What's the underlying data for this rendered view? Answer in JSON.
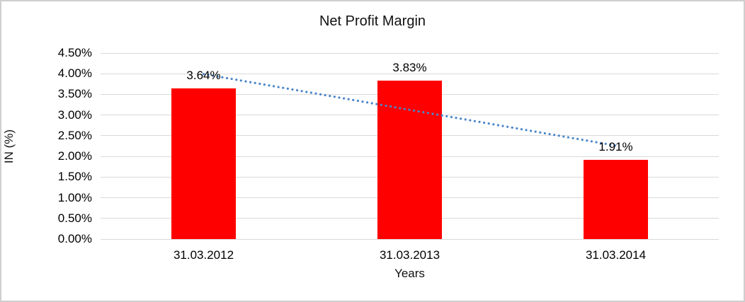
{
  "chart_data": {
    "type": "bar",
    "title": "Net Profit Margin",
    "xlabel": "Years",
    "ylabel": "IN (%)",
    "categories": [
      "31.03.2012",
      "31.03.2013",
      "31.03.2014"
    ],
    "values": [
      3.64,
      3.83,
      1.91
    ],
    "value_labels": [
      "3.64%",
      "3.83%",
      "1.91%"
    ],
    "y_tick_labels": [
      "4.50%",
      "4.00%",
      "3.50%",
      "3.00%",
      "2.50%",
      "2.00%",
      "1.50%",
      "1.00%",
      "0.50%",
      "0.00%"
    ],
    "ylim": [
      0,
      4.5
    ],
    "tick_step": 0.5,
    "grid": true,
    "legend": "none",
    "trendline": {
      "type": "linear",
      "style": "dotted"
    }
  },
  "colors": {
    "bar": "#FF0000",
    "trendline": "#4A86C8",
    "gridline": "#D9D9D9",
    "text": "#000000",
    "border": "#CFCFCF",
    "background": "#FFFFFF"
  }
}
